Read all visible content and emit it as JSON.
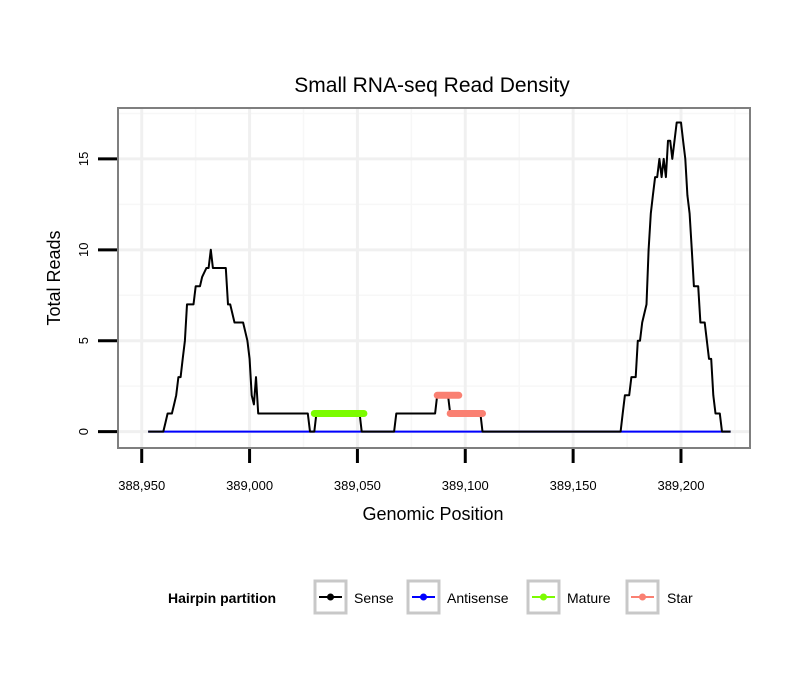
{
  "chart_data": {
    "type": "line",
    "title": "Small RNA-seq Read Density",
    "xlabel": "Genomic Position",
    "ylabel": "Total Reads",
    "xlim": [
      388939,
      389232
    ],
    "ylim": [
      -0.9,
      17.8
    ],
    "x_ticks": [
      388950,
      389000,
      389050,
      389100,
      389150,
      389200
    ],
    "x_tick_labels": [
      "388,950",
      "389,000",
      "389,050",
      "389,100",
      "389,150",
      "389,200"
    ],
    "y_ticks": [
      0,
      5,
      10,
      15
    ],
    "y_tick_labels": [
      "0",
      "5",
      "10",
      "15"
    ],
    "grid": true,
    "legend": {
      "title": "Hairpin partition",
      "position": "bottom",
      "entries": [
        {
          "label": "Sense",
          "color": "#000000"
        },
        {
          "label": "Antisense",
          "color": "#0000ff"
        },
        {
          "label": "Mature",
          "color": "#7cfc00"
        },
        {
          "label": "Star",
          "color": "#fa8072"
        }
      ]
    },
    "series": [
      {
        "name": "Sense",
        "color": "#000000",
        "stroke": "thin",
        "x": [
          388953,
          388960,
          388961,
          388962,
          388964,
          388965,
          388966,
          388967,
          388968,
          388969,
          388970,
          388971,
          388972,
          388974,
          388975,
          388977,
          388978,
          388980,
          388981,
          388982,
          388983,
          388984,
          388985,
          388986,
          388988,
          388989,
          388990,
          388991,
          388993,
          388994,
          388996,
          388997,
          388999,
          389000,
          389001,
          389002,
          389003,
          389004,
          389005,
          389027,
          389028,
          389030,
          389031,
          389051,
          389052,
          389054,
          389056,
          389067,
          389068,
          389069,
          389085,
          389086,
          389087,
          389092,
          389093,
          389094,
          389101,
          389102,
          389103,
          389106,
          389107,
          389108,
          389172,
          389173,
          389174,
          389176,
          389177,
          389179,
          389180,
          389181,
          389182,
          389184,
          389185,
          389186,
          389187,
          389188,
          389189,
          389190,
          389191,
          389192,
          389193,
          389194,
          389195,
          389196,
          389197,
          389198,
          389199,
          389200,
          389201,
          389202,
          389203,
          389204,
          389205,
          389206,
          389207,
          389208,
          389209,
          389210,
          389211,
          389213,
          389214,
          389215,
          389216,
          389217,
          389218,
          389219,
          389220,
          389221,
          389222,
          389223
        ],
        "y": [
          0,
          0,
          0.5,
          1,
          1,
          1.5,
          2,
          3,
          3,
          4,
          5,
          7,
          7,
          7,
          8,
          8,
          8.5,
          9,
          9,
          10,
          9,
          9,
          9,
          9,
          9,
          9,
          7,
          7,
          6,
          6,
          6,
          6,
          5,
          4,
          2,
          1.5,
          3,
          1,
          1,
          1,
          0,
          0,
          1,
          1,
          0,
          0,
          0,
          0,
          1,
          1,
          1,
          1,
          2,
          2,
          1,
          1,
          1,
          1,
          1,
          1,
          1,
          0,
          0,
          1,
          2,
          2,
          3,
          3,
          5,
          5,
          6,
          7,
          10,
          12,
          13,
          14,
          14,
          15,
          14,
          15,
          14,
          16,
          16,
          15,
          16,
          17,
          17,
          17,
          16,
          15,
          13,
          12,
          10,
          8,
          8,
          8,
          6,
          6,
          6,
          4,
          4,
          2,
          1,
          1,
          1,
          0,
          0,
          0,
          0,
          0
        ]
      },
      {
        "name": "Antisense",
        "color": "#0000ff",
        "stroke": "thin",
        "x": [
          388953,
          389223
        ],
        "y": [
          0,
          0
        ]
      },
      {
        "name": "Mature",
        "color": "#7cfc00",
        "stroke": "thick",
        "x": [
          389030,
          389053
        ],
        "y": [
          1,
          1
        ]
      },
      {
        "name": "Star",
        "color": "#fa8072",
        "stroke": "thick",
        "segments": [
          {
            "x": [
              389087,
              389097
            ],
            "y": [
              2,
              2
            ]
          },
          {
            "x": [
              389093,
              389108
            ],
            "y": [
              1,
              1
            ]
          }
        ]
      }
    ]
  }
}
